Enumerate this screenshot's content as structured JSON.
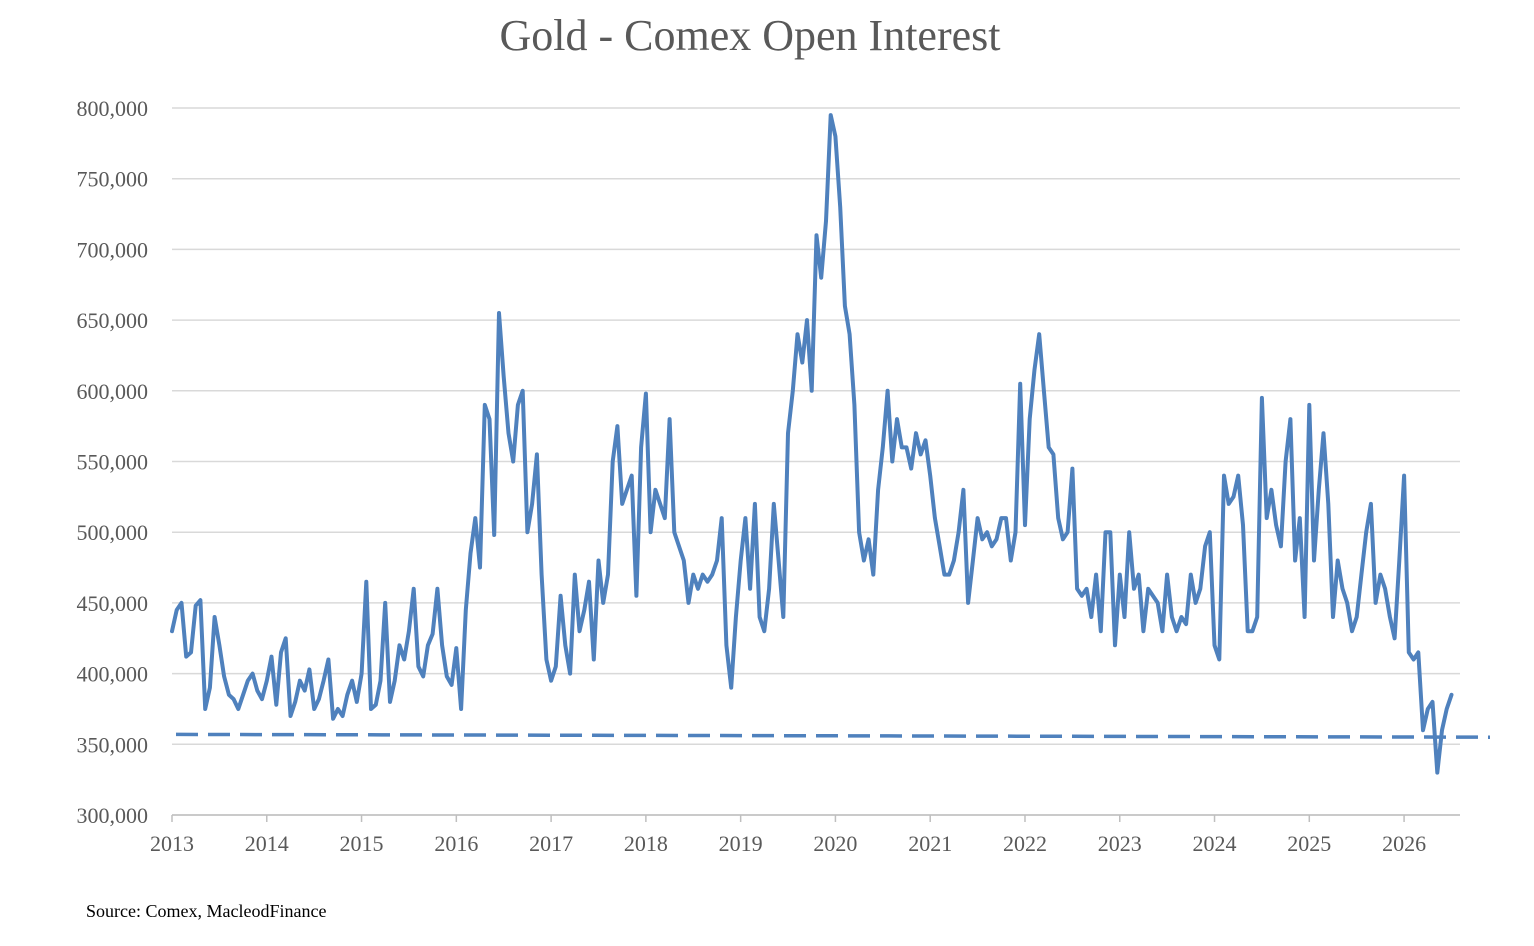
{
  "chart_data": {
    "type": "line",
    "title": "Gold - Comex Open Interest",
    "xlabel": "",
    "ylabel": "",
    "ylim": [
      300000,
      800000
    ],
    "yticks": [
      300000,
      350000,
      400000,
      450000,
      500000,
      550000,
      600000,
      650000,
      700000,
      750000,
      800000
    ],
    "ytick_labels": [
      "300,000",
      "350,000",
      "400,000",
      "450,000",
      "500,000",
      "550,000",
      "600,000",
      "650,000",
      "700,000",
      "750,000",
      "800,000"
    ],
    "xticks": [
      2013,
      2014,
      2015,
      2016,
      2017,
      2018,
      2019,
      2020,
      2021,
      2022,
      2023,
      2024,
      2025,
      2026
    ],
    "xtick_labels": [
      "2013",
      "2014",
      "2015",
      "2016",
      "2017",
      "2018",
      "2019",
      "2020",
      "2021",
      "2022",
      "2023",
      "2024",
      "2025",
      "2026"
    ],
    "grid": true,
    "legend": "none",
    "colors": {
      "line": "#4f81bd",
      "grid": "#d9d9d9",
      "text": "#595959"
    },
    "series": [
      {
        "style": "solid",
        "x": [
          2013.0,
          2013.05,
          2013.1,
          2013.15,
          2013.2,
          2013.25,
          2013.3,
          2013.35,
          2013.4,
          2013.45,
          2013.5,
          2013.55,
          2013.6,
          2013.65,
          2013.7,
          2013.75,
          2013.8,
          2013.85,
          2013.9,
          2013.95,
          2014.0,
          2014.05,
          2014.1,
          2014.15,
          2014.2,
          2014.25,
          2014.3,
          2014.35,
          2014.4,
          2014.45,
          2014.5,
          2014.55,
          2014.6,
          2014.65,
          2014.7,
          2014.75,
          2014.8,
          2014.85,
          2014.9,
          2014.95,
          2015.0,
          2015.05,
          2015.1,
          2015.15,
          2015.2,
          2015.25,
          2015.3,
          2015.35,
          2015.4,
          2015.45,
          2015.5,
          2015.55,
          2015.6,
          2015.65,
          2015.7,
          2015.75,
          2015.8,
          2015.85,
          2015.9,
          2015.95,
          2016.0,
          2016.05,
          2016.1,
          2016.15,
          2016.2,
          2016.25,
          2016.3,
          2016.35,
          2016.4,
          2016.45,
          2016.5,
          2016.55,
          2016.6,
          2016.65,
          2016.7,
          2016.75,
          2016.8,
          2016.85,
          2016.9,
          2016.95,
          2017.0,
          2017.05,
          2017.1,
          2017.15,
          2017.2,
          2017.25,
          2017.3,
          2017.35,
          2017.4,
          2017.45,
          2017.5,
          2017.55,
          2017.6,
          2017.65,
          2017.7,
          2017.75,
          2017.8,
          2017.85,
          2017.9,
          2017.95,
          2018.0,
          2018.05,
          2018.1,
          2018.15,
          2018.2,
          2018.25,
          2018.3,
          2018.35,
          2018.4,
          2018.45,
          2018.5,
          2018.55,
          2018.6,
          2018.65,
          2018.7,
          2018.75,
          2018.8,
          2018.85,
          2018.9,
          2018.95,
          2019.0,
          2019.05,
          2019.1,
          2019.15,
          2019.2,
          2019.25,
          2019.3,
          2019.35,
          2019.4,
          2019.45,
          2019.5,
          2019.55,
          2019.6,
          2019.65,
          2019.7,
          2019.75,
          2019.8,
          2019.85,
          2019.9,
          2019.95,
          2020.0,
          2020.05,
          2020.1,
          2020.15,
          2020.2,
          2020.25,
          2020.3,
          2020.35,
          2020.4,
          2020.45,
          2020.5,
          2020.55,
          2020.6,
          2020.65,
          2020.7,
          2020.75,
          2020.8,
          2020.85,
          2020.9,
          2020.95,
          2021.0,
          2021.05,
          2021.1,
          2021.15,
          2021.2,
          2021.25,
          2021.3,
          2021.35,
          2021.4,
          2021.45,
          2021.5,
          2021.55,
          2021.6,
          2021.65,
          2021.7,
          2021.75,
          2021.8,
          2021.85,
          2021.9,
          2021.95,
          2022.0,
          2022.05,
          2022.1,
          2022.15,
          2022.2,
          2022.25,
          2022.3,
          2022.35,
          2022.4,
          2022.45,
          2022.5,
          2022.55,
          2022.6,
          2022.65,
          2022.7,
          2022.75,
          2022.8,
          2022.85,
          2022.9,
          2022.95,
          2023.0,
          2023.05,
          2023.1,
          2023.15,
          2023.2,
          2023.25,
          2023.3,
          2023.35,
          2023.4,
          2023.45,
          2023.5,
          2023.55,
          2023.6,
          2023.65,
          2023.7,
          2023.75,
          2023.8,
          2023.85,
          2023.9,
          2023.95,
          2024.0,
          2024.05,
          2024.1,
          2024.15,
          2024.2,
          2024.25,
          2024.3,
          2024.35,
          2024.4,
          2024.45,
          2024.5,
          2024.55,
          2024.6,
          2024.65,
          2024.7,
          2024.75,
          2024.8,
          2024.85,
          2024.9,
          2024.95,
          2025.0,
          2025.05,
          2025.1,
          2025.15,
          2025.2,
          2025.25,
          2025.3,
          2025.35,
          2025.4,
          2025.45,
          2025.5,
          2025.55,
          2025.6,
          2025.65,
          2025.7,
          2025.75,
          2025.8,
          2025.85,
          2025.9,
          2025.95,
          2026.0,
          2026.05,
          2026.1,
          2026.15,
          2026.2,
          2026.25,
          2026.3,
          2026.35,
          2026.4,
          2026.45,
          2026.5
        ],
        "y": [
          430000,
          445000,
          450000,
          412000,
          415000,
          448000,
          452000,
          375000,
          390000,
          440000,
          420000,
          398000,
          385000,
          382000,
          375000,
          385000,
          395000,
          400000,
          388000,
          382000,
          395000,
          412000,
          378000,
          415000,
          425000,
          370000,
          380000,
          395000,
          388000,
          403000,
          375000,
          382000,
          395000,
          410000,
          368000,
          375000,
          370000,
          385000,
          395000,
          380000,
          400000,
          465000,
          375000,
          378000,
          395000,
          450000,
          380000,
          395000,
          420000,
          410000,
          430000,
          460000,
          405000,
          398000,
          420000,
          428000,
          460000,
          420000,
          398000,
          392000,
          418000,
          375000,
          445000,
          485000,
          510000,
          475000,
          590000,
          580000,
          498000,
          655000,
          610000,
          570000,
          550000,
          590000,
          600000,
          500000,
          520000,
          555000,
          470000,
          410000,
          395000,
          405000,
          455000,
          420000,
          400000,
          470000,
          430000,
          445000,
          465000,
          410000,
          480000,
          450000,
          470000,
          550000,
          575000,
          520000,
          530000,
          540000,
          455000,
          560000,
          598000,
          500000,
          530000,
          520000,
          510000,
          580000,
          500000,
          490000,
          480000,
          450000,
          470000,
          460000,
          470000,
          465000,
          470000,
          480000,
          510000,
          420000,
          390000,
          440000,
          480000,
          510000,
          460000,
          520000,
          440000,
          430000,
          460000,
          520000,
          480000,
          440000,
          570000,
          600000,
          640000,
          620000,
          650000,
          600000,
          710000,
          680000,
          720000,
          795000,
          780000,
          730000,
          660000,
          640000,
          590000,
          500000,
          480000,
          495000,
          470000,
          530000,
          560000,
          600000,
          550000,
          580000,
          560000,
          560000,
          545000,
          570000,
          555000,
          565000,
          540000,
          510000,
          490000,
          470000,
          470000,
          480000,
          500000,
          530000,
          450000,
          480000,
          510000,
          495000,
          500000,
          490000,
          495000,
          510000,
          510000,
          480000,
          500000,
          605000,
          505000,
          580000,
          615000,
          640000,
          600000,
          560000,
          555000,
          510000,
          495000,
          500000,
          545000,
          460000,
          455000,
          460000,
          440000,
          470000,
          430000,
          500000,
          500000,
          420000,
          470000,
          440000,
          500000,
          460000,
          470000,
          430000,
          460000,
          455000,
          450000,
          430000,
          470000,
          440000,
          430000,
          440000,
          435000,
          470000,
          450000,
          460000,
          490000,
          500000,
          420000,
          410000,
          540000,
          520000,
          525000,
          540000,
          505000,
          430000,
          430000,
          440000,
          595000,
          510000,
          530000,
          505000,
          490000,
          550000,
          580000,
          480000,
          510000,
          440000,
          590000,
          480000,
          530000,
          570000,
          520000,
          440000,
          480000,
          460000,
          450000,
          430000,
          440000,
          470000,
          500000,
          520000,
          450000,
          470000,
          460000,
          440000,
          425000,
          480000,
          540000,
          415000,
          410000,
          415000,
          360000,
          375000,
          380000,
          330000,
          360000,
          375000,
          385000
        ]
      },
      {
        "style": "dashed",
        "x": [
          2013.0,
          2026.9
        ],
        "y": [
          357000,
          355000
        ]
      }
    ]
  },
  "footer": {
    "source": "Source: Comex,  MacleodFinance"
  }
}
